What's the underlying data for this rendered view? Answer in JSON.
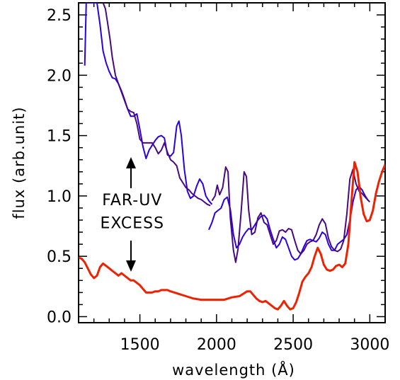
{
  "chart_data": {
    "type": "line",
    "title": "",
    "xlabel": "wavelength (Å)",
    "ylabel": "flux (arb.unit)",
    "xlim": [
      1100,
      3100
    ],
    "ylim": [
      -0.05,
      2.6
    ],
    "x_ticks": [
      1500,
      2000,
      2500,
      3000
    ],
    "x_tick_labels": [
      "1500",
      "2000",
      "2500",
      "3000"
    ],
    "y_ticks": [
      0.0,
      0.5,
      1.0,
      1.5,
      2.0,
      2.5
    ],
    "y_tick_labels": [
      "0.0",
      "0.5",
      "1.0",
      "1.5",
      "2.0",
      "2.5"
    ],
    "grid": false,
    "annotations": [
      {
        "text": "FAR-UV",
        "x": 1450,
        "y": 0.97
      },
      {
        "text": "EXCESS",
        "x": 1450,
        "y": 0.78
      }
    ],
    "series": [
      {
        "color": "#2a00e6",
        "x": [
          1140,
          1150,
          1165,
          1180,
          1200,
          1220,
          1240,
          1260,
          1280,
          1300,
          1320,
          1340,
          1360,
          1380,
          1400,
          1420,
          1440,
          1460,
          1480,
          1500,
          1520,
          1540,
          1560,
          1580,
          1600,
          1620,
          1640,
          1660,
          1680,
          1700,
          1720,
          1740,
          1755,
          1770,
          1790,
          1810,
          1830,
          1850,
          1870,
          1890,
          1910,
          1930,
          1950,
          1970
        ],
        "y": [
          2.08,
          2.6,
          2.6,
          2.6,
          2.6,
          2.6,
          2.42,
          2.2,
          2.1,
          2.03,
          1.98,
          1.97,
          1.93,
          1.87,
          1.8,
          1.72,
          1.66,
          1.66,
          1.68,
          1.55,
          1.41,
          1.31,
          1.38,
          1.42,
          1.46,
          1.49,
          1.5,
          1.48,
          1.34,
          1.33,
          1.36,
          1.58,
          1.62,
          1.5,
          1.22,
          1.04,
          0.98,
          1.0,
          1.08,
          1.14,
          1.1,
          1.0,
          0.96,
          0.93
        ]
      },
      {
        "color": "#4a0880",
        "x": [
          1260,
          1275,
          1290,
          1305,
          1320,
          1340,
          1360,
          1380,
          1400,
          1420,
          1440,
          1460,
          1480,
          1500,
          1520,
          1540,
          1560,
          1580,
          1600,
          1620,
          1640,
          1660,
          1680,
          1700,
          1720,
          1740,
          1760,
          1780,
          1800,
          1820,
          1840,
          1860,
          1880,
          1900,
          1920,
          1940,
          1960
        ],
        "y": [
          2.6,
          2.55,
          2.43,
          2.3,
          2.15,
          2.0,
          1.93,
          1.86,
          1.79,
          1.72,
          1.7,
          1.69,
          1.6,
          1.47,
          1.44,
          1.44,
          1.44,
          1.44,
          1.4,
          1.35,
          1.38,
          1.44,
          1.36,
          1.3,
          1.28,
          1.25,
          1.15,
          1.11,
          1.07,
          1.05,
          1.02,
          1.0,
          0.98,
          0.97,
          0.95,
          0.93,
          0.92
        ]
      },
      {
        "color": "#2a00e6",
        "x": [
          1950,
          1970,
          1990,
          2010,
          2030,
          2050,
          2070,
          2090,
          2110,
          2130,
          2150,
          2170,
          2190,
          2210,
          2230,
          2250,
          2270,
          2290,
          2310,
          2330,
          2350,
          2370,
          2390,
          2410,
          2430,
          2450,
          2470,
          2490,
          2510,
          2530,
          2550,
          2570,
          2590,
          2610,
          2630,
          2650,
          2670,
          2690,
          2710,
          2730,
          2750,
          2770,
          2790,
          2810,
          2830,
          2850,
          2870,
          2890,
          2910,
          2930,
          2950,
          2970,
          2990
        ],
        "y": [
          0.72,
          0.78,
          0.86,
          0.88,
          0.9,
          0.97,
          0.99,
          0.89,
          0.68,
          0.57,
          0.6,
          0.66,
          0.7,
          0.73,
          0.72,
          0.76,
          0.8,
          0.83,
          0.84,
          0.81,
          0.72,
          0.64,
          0.57,
          0.6,
          0.66,
          0.64,
          0.57,
          0.5,
          0.47,
          0.48,
          0.52,
          0.58,
          0.63,
          0.64,
          0.63,
          0.62,
          0.65,
          0.7,
          0.68,
          0.6,
          0.55,
          0.55,
          0.6,
          0.62,
          0.64,
          0.68,
          0.8,
          0.95,
          1.05,
          1.08,
          1.05,
          1.0,
          0.96
        ]
      },
      {
        "color": "#4a0880",
        "x": [
          1970,
          1990,
          2005,
          2020,
          2040,
          2060,
          2075,
          2090,
          2110,
          2125,
          2140,
          2160,
          2180,
          2195,
          2210,
          2230,
          2250,
          2270,
          2290,
          2310,
          2330,
          2350,
          2370,
          2390,
          2410,
          2430,
          2450,
          2470,
          2490,
          2510,
          2530,
          2550,
          2570,
          2590,
          2610,
          2630,
          2650,
          2670,
          2690,
          2710,
          2730,
          2750,
          2770,
          2790,
          2810,
          2830,
          2850,
          2870,
          2890,
          2910,
          2930,
          2950,
          2970,
          3000
        ],
        "y": [
          0.96,
          1.0,
          1.09,
          1.01,
          1.07,
          1.24,
          1.2,
          0.82,
          0.55,
          0.45,
          0.56,
          0.86,
          1.2,
          1.16,
          0.88,
          0.68,
          0.7,
          0.82,
          0.86,
          0.78,
          0.76,
          0.68,
          0.6,
          0.63,
          0.71,
          0.72,
          0.7,
          0.73,
          0.72,
          0.63,
          0.55,
          0.52,
          0.55,
          0.6,
          0.62,
          0.63,
          0.68,
          0.76,
          0.81,
          0.77,
          0.65,
          0.58,
          0.55,
          0.54,
          0.56,
          0.63,
          0.85,
          1.14,
          1.22,
          1.1,
          1.04,
          1.02,
          0.99,
          0.95
        ]
      },
      {
        "color": "#ee2200",
        "x": [
          1100,
          1120,
          1140,
          1160,
          1180,
          1200,
          1220,
          1240,
          1260,
          1280,
          1300,
          1320,
          1340,
          1360,
          1380,
          1400,
          1420,
          1440,
          1460,
          1480,
          1500,
          1520,
          1540,
          1560,
          1580,
          1600,
          1620,
          1640,
          1660,
          1680,
          1700,
          1750,
          1800,
          1850,
          1900,
          1950,
          2000,
          2050,
          2100,
          2150,
          2200,
          2220,
          2240,
          2260,
          2280,
          2300,
          2320,
          2340,
          2360,
          2380,
          2400,
          2420,
          2440,
          2460,
          2480,
          2500,
          2520,
          2540,
          2560,
          2580,
          2600,
          2620,
          2640,
          2660,
          2680,
          2700,
          2720,
          2740,
          2760,
          2780,
          2800,
          2820,
          2840,
          2860,
          2880,
          2900,
          2920,
          2940,
          2960,
          2980,
          3000,
          3020,
          3040,
          3060,
          3080,
          3100
        ],
        "y": [
          0.49,
          0.48,
          0.45,
          0.4,
          0.35,
          0.32,
          0.34,
          0.41,
          0.44,
          0.42,
          0.4,
          0.38,
          0.36,
          0.34,
          0.36,
          0.34,
          0.32,
          0.3,
          0.3,
          0.28,
          0.26,
          0.23,
          0.2,
          0.2,
          0.2,
          0.21,
          0.21,
          0.22,
          0.22,
          0.22,
          0.21,
          0.19,
          0.17,
          0.15,
          0.14,
          0.14,
          0.14,
          0.14,
          0.16,
          0.17,
          0.21,
          0.21,
          0.18,
          0.15,
          0.13,
          0.12,
          0.13,
          0.11,
          0.09,
          0.07,
          0.06,
          0.09,
          0.13,
          0.09,
          0.06,
          0.07,
          0.12,
          0.2,
          0.29,
          0.33,
          0.36,
          0.41,
          0.5,
          0.57,
          0.52,
          0.43,
          0.39,
          0.38,
          0.39,
          0.42,
          0.43,
          0.41,
          0.44,
          0.6,
          0.95,
          1.28,
          1.2,
          0.99,
          0.85,
          0.79,
          0.8,
          0.88,
          1.02,
          1.12,
          1.2,
          1.26
        ]
      }
    ]
  }
}
